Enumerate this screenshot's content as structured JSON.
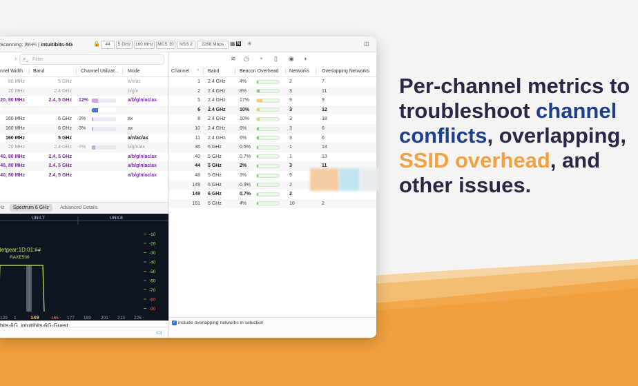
{
  "toolbar": {
    "scanning": "Scanning: Wi-Fi",
    "separator": "|",
    "network": "intuitibits-5G",
    "chips": [
      "44",
      "5 GHz",
      "160 MHz",
      "MCS 10",
      "NSS 2",
      "2268 Mbps"
    ],
    "nav_icon": "N"
  },
  "left_panel": {
    "filter_placeholder": "Filter",
    "columns": [
      "nnel Width",
      "Band",
      "Channel Utilizat...",
      "Mode"
    ],
    "rows": [
      {
        "width": "80 MHz",
        "band": "5 GHz",
        "util": "",
        "util_pct": 0,
        "mode": "a/n/ac",
        "style": "dim"
      },
      {
        "width": "20 MHz",
        "band": "2.4 GHz",
        "util": "",
        "util_pct": 0,
        "mode": "b/g/n",
        "style": "dim"
      },
      {
        "width": "20, 80 MHz",
        "band": "2.4, 5 GHz",
        "util": "12%",
        "util_pct": 12,
        "mode": "a/b/g/n/ac/ax",
        "style": "purple"
      },
      {
        "width": "0, 160 MHz",
        "band": "2.4, 5, 6 GHz",
        "util": "12%",
        "util_pct": 12,
        "mode": "a/b/g/n/ac/ax",
        "style": "sel"
      },
      {
        "width": "160 MHz",
        "band": "6 GHz",
        "util": "3%",
        "util_pct": 3,
        "mode": "ax",
        "style": "normal"
      },
      {
        "width": "160 MHz",
        "band": "6 GHz",
        "util": "3%",
        "util_pct": 3,
        "mode": "ax",
        "style": "normal"
      },
      {
        "width": "160 MHz",
        "band": "5 GHz",
        "util": "",
        "util_pct": 0,
        "mode": "a/n/ac/ax",
        "style": "bold"
      },
      {
        "width": "20 MHz",
        "band": "2.4 GHz",
        "util": "7%",
        "util_pct": 7,
        "mode": "b/g/n/ax",
        "style": "dim"
      },
      {
        "width": "40, 80 MHz",
        "band": "2.4, 5 GHz",
        "util": "",
        "util_pct": 0,
        "mode": "a/b/g/n/ac/ax",
        "style": "purple"
      },
      {
        "width": "40, 80 MHz",
        "band": "2.4, 5 GHz",
        "util": "",
        "util_pct": 0,
        "mode": "a/b/g/n/ac/ax",
        "style": "purple"
      },
      {
        "width": "40, 80 MHz",
        "band": "2.4, 5 GHz",
        "util": "",
        "util_pct": 0,
        "mode": "a/b/g/n/ac/ax",
        "style": "purple"
      }
    ],
    "tabs": {
      "first": "Hz",
      "active": "Spectrum 6 GHz",
      "third": "Advanced Details"
    },
    "spectrum": {
      "unii_labels": [
        "UNII-7",
        "UNII-8"
      ],
      "db_labels": [
        "-10",
        "-20",
        "-30",
        "-40",
        "-50",
        "-60",
        "-70",
        "-80",
        "-90"
      ],
      "ssid_label": "Netgear:1D:01:##",
      "model_label": "RAXE500",
      "x_labels": [
        "129",
        "1",
        "149",
        "165",
        "177",
        "189",
        "201",
        "213",
        "225"
      ]
    },
    "status_text": "bits-6G, intuitibits-6G-Guest"
  },
  "right_panel": {
    "columns": [
      "Channel",
      "Band",
      "Beacon Overhead",
      "Networks",
      "Overlapping Networks"
    ],
    "sort_indicator": "^",
    "rows": [
      {
        "channel": "1",
        "band": "2.4 GHz",
        "overhead": "4%",
        "pct": 4,
        "networks": "2",
        "overlapping": "7",
        "bold": false
      },
      {
        "channel": "2",
        "band": "2.4 GHz",
        "overhead": "8%",
        "pct": 8,
        "networks": "3",
        "overlapping": "11",
        "bold": false
      },
      {
        "channel": "5",
        "band": "2.4 GHz",
        "overhead": "17%",
        "pct": 17,
        "networks": "9",
        "overlapping": "9",
        "bold": false
      },
      {
        "channel": "6",
        "band": "2.4 GHz",
        "overhead": "10%",
        "pct": 10,
        "networks": "3",
        "overlapping": "12",
        "bold": true
      },
      {
        "channel": "8",
        "band": "2.4 GHz",
        "overhead": "10%",
        "pct": 10,
        "networks": "3",
        "overlapping": "18",
        "bold": false
      },
      {
        "channel": "10",
        "band": "2.4 GHz",
        "overhead": "6%",
        "pct": 6,
        "networks": "3",
        "overlapping": "6",
        "bold": false
      },
      {
        "channel": "11",
        "band": "2.4 GHz",
        "overhead": "6%",
        "pct": 6,
        "networks": "3",
        "overlapping": "6",
        "bold": false
      },
      {
        "channel": "36",
        "band": "5 GHz",
        "overhead": "0.5%",
        "pct": 0.5,
        "networks": "1",
        "overlapping": "13",
        "bold": false
      },
      {
        "channel": "40",
        "band": "5 GHz",
        "overhead": "0.7%",
        "pct": 0.7,
        "networks": "1",
        "overlapping": "13",
        "bold": false
      },
      {
        "channel": "44",
        "band": "5 GHz",
        "overhead": "2%",
        "pct": 2,
        "networks": "3",
        "overlapping": "11",
        "bold": true
      },
      {
        "channel": "48",
        "band": "5 GHz",
        "overhead": "3%",
        "pct": 3,
        "networks": "9",
        "overlapping": "",
        "bold": false
      },
      {
        "channel": "149",
        "band": "5 GHz",
        "overhead": "0.9%",
        "pct": 0.9,
        "networks": "2",
        "overlapping": "",
        "bold": false
      },
      {
        "channel": "149",
        "band": "6 GHz",
        "overhead": "0.7%",
        "pct": 0.7,
        "networks": "2",
        "overlapping": "",
        "bold": true
      },
      {
        "channel": "161",
        "band": "5 GHz",
        "overhead": "4%",
        "pct": 4,
        "networks": "10",
        "overlapping": "2",
        "bold": false
      }
    ],
    "checkbox_label": "include overlapping networks in selection"
  },
  "headline": {
    "line1": "Per-channel metrics to",
    "line2a": "troubleshoot ",
    "line2b": "channel",
    "line3a": "conflicts",
    "line3b": ", overlapping,",
    "line4a": "SSID overhead",
    "line4b": ", and",
    "line5": "other issues."
  },
  "colors": {
    "accent_blue": "#2f6fd8",
    "headline": "#2c2547",
    "headline_blue": "#1d3f8f",
    "headline_orange": "#f0a144",
    "wave_orange": "#f0a03e"
  }
}
